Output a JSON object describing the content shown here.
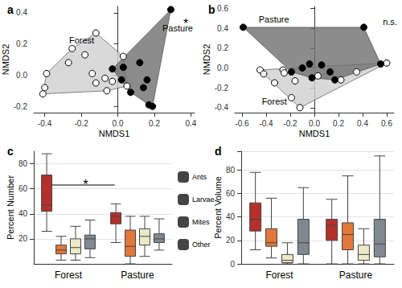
{
  "chart_data": [
    {
      "type": "scatter",
      "title": "a",
      "x_label": "NMDS1",
      "y_label": "NMDS2",
      "xlim": [
        -0.46,
        0.42
      ],
      "ylim": [
        -0.24,
        0.44
      ],
      "xticks": [
        -0.4,
        -0.2,
        {
          "value": 0,
          "label": "0.0"
        },
        0.2,
        0.4
      ],
      "yticks": [
        -0.2,
        {
          "value": 0,
          "label": "0.0"
        },
        0.2,
        0.4
      ],
      "grid": false,
      "annotation": "*",
      "series": [
        {
          "name": "Forest",
          "color": "#ffffff",
          "x": [
            -0.41,
            -0.4,
            -0.39,
            -0.25,
            -0.12,
            -0.27,
            -0.14,
            -0.12,
            -0.07,
            -0.06,
            -0.03,
            0.05,
            0.03,
            -0.18
          ],
          "y": [
            -0.12,
            -0.08,
            0.01,
            0.17,
            0.27,
            0.08,
            0.01,
            -0.05,
            -0.02,
            -0.1,
            -0.04,
            -0.07,
            0.12,
            0.13
          ]
        },
        {
          "name": "Pasture",
          "color": "#000000",
          "x": [
            0.29,
            -0.03,
            0.03,
            0.12,
            0.02,
            0.16,
            0.14,
            0.07,
            0.17,
            0.19
          ],
          "y": [
            0.42,
            0.04,
            0.05,
            0.08,
            -0.03,
            -0.03,
            -0.08,
            -0.11,
            -0.19,
            -0.2
          ]
        }
      ]
    },
    {
      "type": "scatter",
      "title": "b",
      "x_label": "NMDS1",
      "y_label": "NMDS2",
      "xlim": [
        -0.66,
        0.66
      ],
      "ylim": [
        -0.45,
        0.62
      ],
      "xticks": [
        -0.6,
        -0.4,
        -0.2,
        {
          "value": 0,
          "label": "0.0"
        },
        0.2,
        0.4,
        0.6
      ],
      "yticks": [
        -0.4,
        -0.2,
        {
          "value": 0,
          "label": "0.0"
        },
        0.2,
        0.4,
        0.6
      ],
      "grid": false,
      "annotation": "n.s.",
      "series": [
        {
          "name": "Forest",
          "color": "#ffffff",
          "x": [
            -0.45,
            -0.42,
            -0.26,
            -0.25,
            -0.16,
            -0.19,
            -0.12,
            -0.33,
            0.22,
            0.35,
            0.6,
            0.03
          ],
          "y": [
            -0.02,
            -0.06,
            -0.02,
            -0.05,
            -0.13,
            -0.3,
            -0.4,
            -0.15,
            -0.12,
            -0.04,
            0.05,
            -0.08
          ]
        },
        {
          "name": "Pasture",
          "color": "#000000",
          "x": [
            -0.59,
            0.41,
            0.55,
            -0.19,
            -0.1,
            -0.04,
            0.06,
            0.13,
            0.17,
            -0.02
          ],
          "y": [
            0.41,
            0.41,
            0.04,
            -0.04,
            0.0,
            0.04,
            0.03,
            -0.04,
            -0.12,
            -0.1
          ]
        }
      ]
    },
    {
      "type": "boxplot",
      "title": "c",
      "y_label": "Percent Number",
      "categories": [
        "Forest",
        "Pasture"
      ],
      "ylim": [
        0,
        90
      ],
      "yticks": [
        20,
        40,
        60,
        80
      ],
      "grid": true,
      "legend": "right",
      "annotation": "*",
      "series": [
        {
          "name": "Ants",
          "color": "#b5302a",
          "values": [
            [
              26,
              42,
              47,
              71,
              88
            ],
            [
              17,
              32,
              38,
              41,
              48
            ]
          ]
        },
        {
          "name": "Larvae",
          "color": "#e2773c",
          "values": [
            [
              3,
              8,
              11,
              15,
              22
            ],
            [
              0,
              6,
              14,
              27,
              38
            ]
          ]
        },
        {
          "name": "Mites",
          "color": "#ebe9c7",
          "values": [
            [
              3,
              8,
              13,
              20,
              30
            ],
            [
              6,
              15,
              22,
              28,
              38
            ]
          ]
        },
        {
          "name": "Other",
          "color": "#80898f",
          "values": [
            [
              5,
              12,
              20,
              23,
              35
            ],
            [
              11,
              17,
              20,
              24,
              36
            ]
          ]
        }
      ]
    },
    {
      "type": "boxplot",
      "title": "d",
      "y_label": "Percent Volume",
      "categories": [
        "Forest",
        "Pasture"
      ],
      "ylim": [
        0,
        96
      ],
      "yticks": [
        0,
        20,
        40,
        60,
        80
      ],
      "grid": true,
      "series": [
        {
          "name": "Ants",
          "color": "#b5302a",
          "values": [
            [
              12,
              28,
              38,
              52,
              78
            ],
            [
              0,
              20,
              33,
              38,
              55
            ]
          ]
        },
        {
          "name": "Larvae",
          "color": "#e2773c",
          "values": [
            [
              5,
              15,
              18,
              30,
              56
            ],
            [
              0,
              12,
              25,
              35,
              75
            ]
          ]
        },
        {
          "name": "Mites",
          "color": "#ebe9c7",
          "values": [
            [
              0,
              1,
              3,
              8,
              18
            ],
            [
              0,
              3,
              8,
              16,
              30
            ]
          ]
        },
        {
          "name": "Other",
          "color": "#80898f",
          "values": [
            [
              0,
              8,
              18,
              38,
              65
            ],
            [
              0,
              6,
              17,
              38,
              92
            ]
          ]
        }
      ]
    }
  ]
}
